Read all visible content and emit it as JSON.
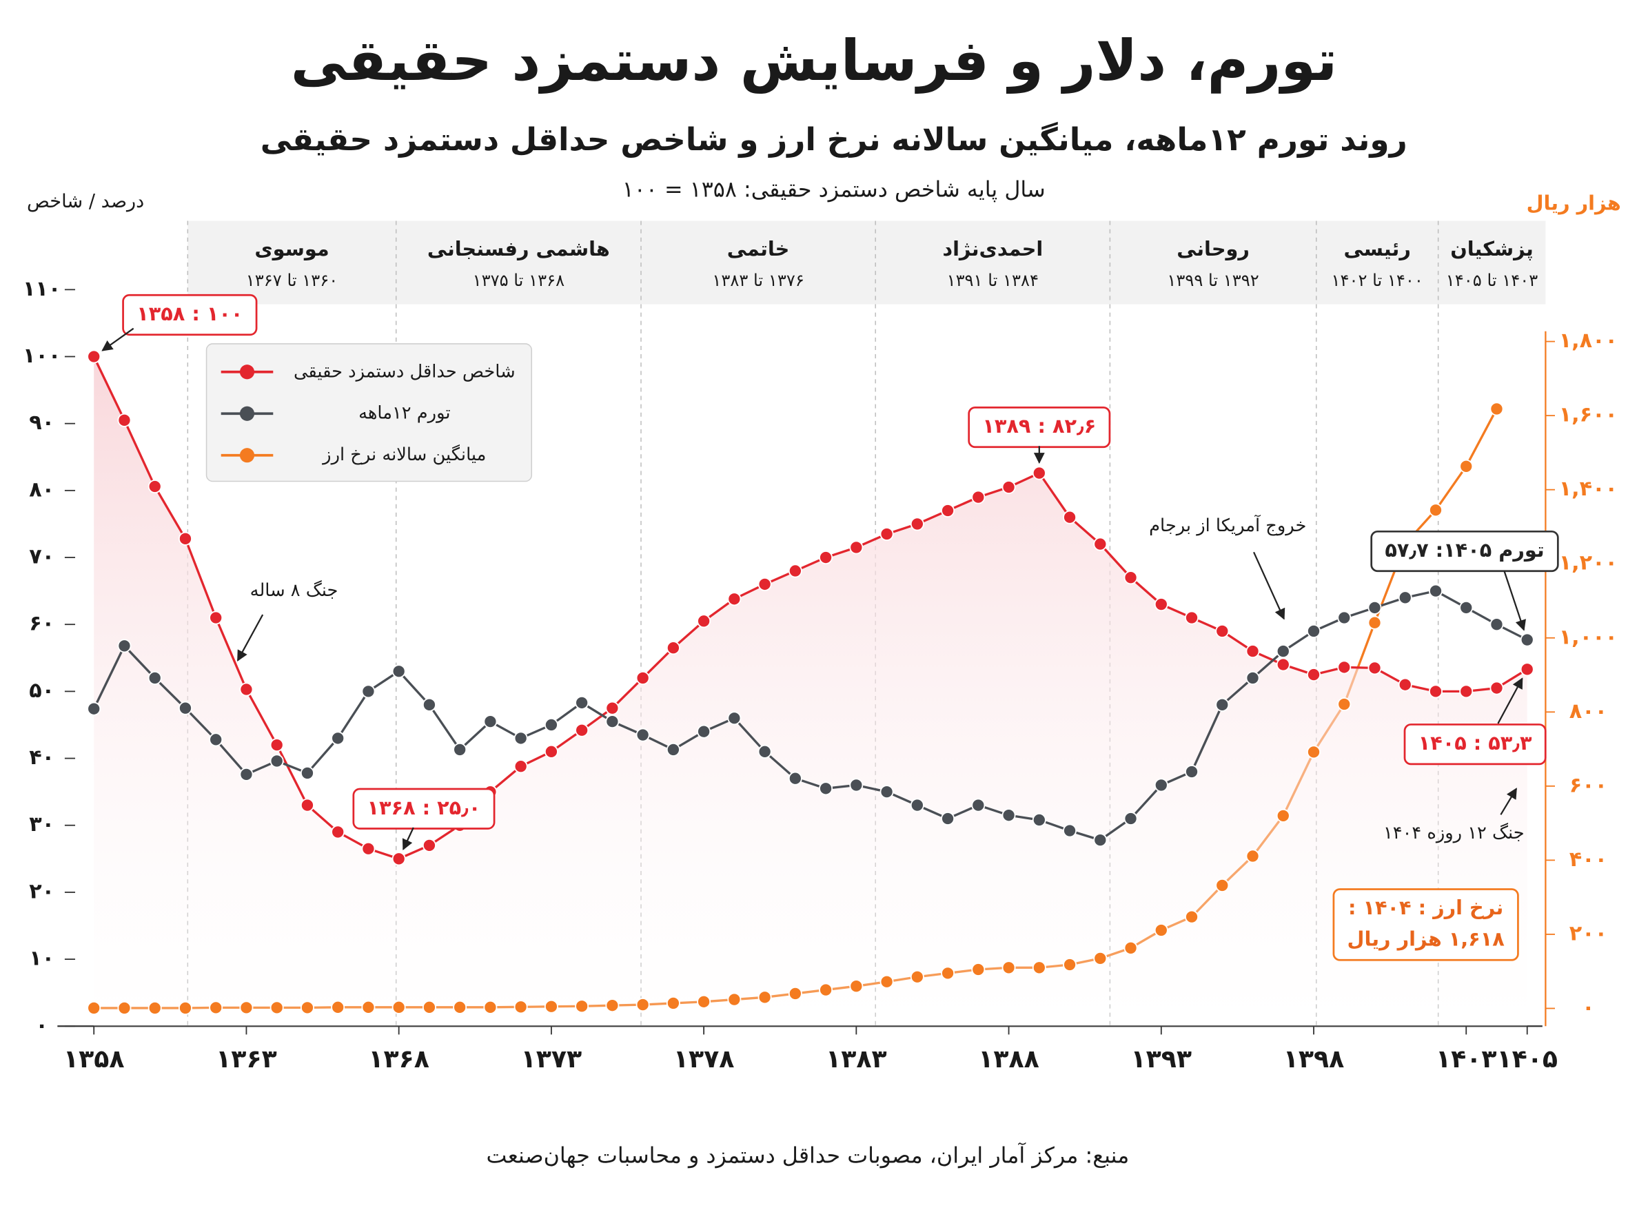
{
  "chart_data": {
    "type": "line",
    "title": "تورم، دلار و فرسایش دستمزد حقیقی",
    "subtitle": "روند تورم ۱۲ماهه، میانگین سالانه نرخ ارز و شاخص حداقل دستمزد حقیقی",
    "note": "سال پایه شاخص دستمزد حقیقی: ۱۳۵۸ = ۱۰۰",
    "y_label": "درصد / شاخص",
    "y2_label": "هزار ریال",
    "source": "منبع: مرکز آمار ایران، مصوبات حداقل دستمزد و محاسبات جهان‌صنعت",
    "periods": [
      {
        "name": "موسوی",
        "range": "۱۳۶۰ تا ۱۳۶۷"
      },
      {
        "name": "هاشمی رفسنجانی",
        "range": "۱۳۶۸ تا ۱۳۷۵"
      },
      {
        "name": "خاتمی",
        "range": "۱۳۷۶ تا ۱۳۸۳"
      },
      {
        "name": "احمدی‌نژاد",
        "range": "۱۳۸۴ تا ۱۳۹۱"
      },
      {
        "name": "روحانی",
        "range": "۱۳۹۲ تا ۱۳۹۹"
      },
      {
        "name": "رئیسی",
        "range": "۱۴۰۰ تا ۱۴۰۲"
      },
      {
        "name": "پزشکیان",
        "range": "۱۴۰۳ تا ۱۴۰۵"
      }
    ],
    "annotations": [
      "جنگ ۸ ساله",
      "خروج آمریکا از برجام",
      "جنگ ۱۲ روزه ۱۴۰۴"
    ],
    "x": [
      1358,
      1359,
      1360,
      1361,
      1362,
      1363,
      1364,
      1365,
      1366,
      1367,
      1368,
      1369,
      1370,
      1371,
      1372,
      1373,
      1374,
      1375,
      1376,
      1377,
      1378,
      1379,
      1380,
      1381,
      1382,
      1383,
      1384,
      1385,
      1386,
      1387,
      1388,
      1389,
      1390,
      1391,
      1392,
      1393,
      1394,
      1395,
      1396,
      1397,
      1398,
      1399,
      1400,
      1401,
      1402,
      1403,
      1404,
      1405
    ],
    "xlim": [
      1357.3,
      1405.5
    ],
    "xticks": [
      {
        "value": 1358,
        "label": "۱۳۵۸"
      },
      {
        "value": 1363,
        "label": "۱۳۶۳"
      },
      {
        "value": 1368,
        "label": "۱۳۶۸"
      },
      {
        "value": 1373,
        "label": "۱۳۷۳"
      },
      {
        "value": 1378,
        "label": "۱۳۷۸"
      },
      {
        "value": 1383,
        "label": "۱۳۸۳"
      },
      {
        "value": 1388,
        "label": "۱۳۸۸"
      },
      {
        "value": 1393,
        "label": "۱۳۹۳"
      },
      {
        "value": 1398,
        "label": "۱۳۹۸"
      },
      {
        "value": 1403,
        "label": "۱۴۰۳"
      },
      {
        "value": 1405,
        "label": "۱۴۰۵"
      }
    ],
    "ylim": [
      0,
      110
    ],
    "yticks": [
      {
        "value": 0,
        "label": "۰"
      },
      {
        "value": 10,
        "label": "۱۰"
      },
      {
        "value": 20,
        "label": "۲۰"
      },
      {
        "value": 30,
        "label": "۳۰"
      },
      {
        "value": 40,
        "label": "۴۰"
      },
      {
        "value": 50,
        "label": "۵۰"
      },
      {
        "value": 60,
        "label": "۶۰"
      },
      {
        "value": 70,
        "label": "۷۰"
      },
      {
        "value": 80,
        "label": "۸۰"
      },
      {
        "value": 90,
        "label": "۹۰"
      },
      {
        "value": 100,
        "label": "۱۰۰"
      },
      {
        "value": 110,
        "label": "۱۱۰"
      }
    ],
    "y2lim": [
      -48,
      1940
    ],
    "y2ticks": [
      {
        "value": 0,
        "label": "۰"
      },
      {
        "value": 200,
        "label": "۲۰۰"
      },
      {
        "value": 400,
        "label": "۴۰۰"
      },
      {
        "value": 600,
        "label": "۶۰۰"
      },
      {
        "value": 800,
        "label": "۸۰۰"
      },
      {
        "value": 1000,
        "label": "۱,۰۰۰"
      },
      {
        "value": 1200,
        "label": "۱,۲۰۰"
      },
      {
        "value": 1400,
        "label": "۱,۴۰۰"
      },
      {
        "value": 1600,
        "label": "۱,۶۰۰"
      },
      {
        "value": 1800,
        "label": "۱,۸۰۰"
      }
    ],
    "grid": false,
    "series": [
      {
        "name": "شاخص حداقل دستمزد حقیقی",
        "color": "#e3262e",
        "area": true,
        "values": [
          100,
          90.5,
          80.6,
          72.8,
          61,
          50.3,
          42,
          33,
          29,
          26.5,
          25.0,
          27,
          30,
          35,
          38.8,
          41,
          44.2,
          47.5,
          52,
          56.5,
          60.5,
          63.8,
          66,
          68,
          70,
          71.5,
          73.5,
          75,
          77,
          79,
          80.5,
          82.6,
          76,
          72,
          67,
          63,
          61,
          59,
          56,
          54,
          52.5,
          53.6,
          53.5,
          51,
          50,
          50,
          50.5,
          53.3
        ],
        "value_labels": [
          "۱۳۵۸ : ۱۰۰",
          null,
          null,
          null,
          null,
          null,
          null,
          null,
          null,
          null,
          "۱۳۶۸ : ۲۵٫۰",
          null,
          null,
          null,
          null,
          null,
          null,
          null,
          null,
          null,
          null,
          null,
          null,
          null,
          null,
          null,
          null,
          null,
          null,
          null,
          null,
          "۱۳۸۹ : ۸۲٫۶",
          null,
          null,
          null,
          null,
          null,
          null,
          null,
          null,
          null,
          null,
          null,
          null,
          null,
          null,
          null,
          "۱۴۰۵ : ۵۳٫۳"
        ]
      },
      {
        "name": "تورم ۱۲ماهه",
        "color": "#4a4f55",
        "values": [
          47.4,
          56.8,
          52,
          47.5,
          42.8,
          37.6,
          39.6,
          37.8,
          43,
          50,
          53,
          48,
          41.3,
          45.5,
          43,
          45,
          48.3,
          45.5,
          43.5,
          41.3,
          44,
          46,
          41,
          37,
          35.5,
          36,
          35,
          33,
          31,
          33,
          31.5,
          30.8,
          29.2,
          27.8,
          31,
          36,
          38,
          48,
          52,
          56,
          59,
          61,
          62.5,
          64,
          65,
          62.5,
          60,
          57.7
        ],
        "value_labels": [
          null,
          null,
          null,
          null,
          null,
          null,
          null,
          null,
          null,
          null,
          null,
          null,
          null,
          null,
          null,
          null,
          null,
          null,
          null,
          null,
          null,
          null,
          null,
          null,
          null,
          null,
          null,
          null,
          null,
          null,
          null,
          null,
          null,
          null,
          null,
          null,
          null,
          null,
          null,
          null,
          null,
          null,
          null,
          null,
          null,
          null,
          null,
          "تورم ۱۴۰۵: ۵۷٫۷"
        ]
      },
      {
        "name": "میانگین سالانه نرخ ارز",
        "color": "#f47b20",
        "axis": "y2",
        "values": [
          1,
          1,
          1,
          1,
          2,
          2,
          2,
          2,
          3,
          3,
          3,
          3,
          3,
          3,
          4,
          5,
          6,
          8,
          10,
          14,
          18,
          24,
          30,
          40,
          50,
          60,
          72,
          85,
          95,
          105,
          110,
          110,
          118,
          135,
          163,
          211,
          247,
          332,
          411,
          520,
          692,
          821,
          1041,
          1254,
          1345,
          1463,
          1618,
          null
        ],
        "value_labels": [
          null,
          null,
          null,
          null,
          null,
          null,
          null,
          null,
          null,
          null,
          null,
          null,
          null,
          null,
          null,
          null,
          null,
          null,
          null,
          null,
          null,
          null,
          null,
          null,
          null,
          null,
          null,
          null,
          null,
          null,
          null,
          null,
          null,
          null,
          null,
          null,
          null,
          null,
          null,
          null,
          null,
          null,
          null,
          null,
          null,
          null,
          [
            "نرخ ارز : ۱۴۰۴ :",
            "۱,۶۱۸ هزار ریال"
          ],
          null
        ]
      }
    ]
  }
}
